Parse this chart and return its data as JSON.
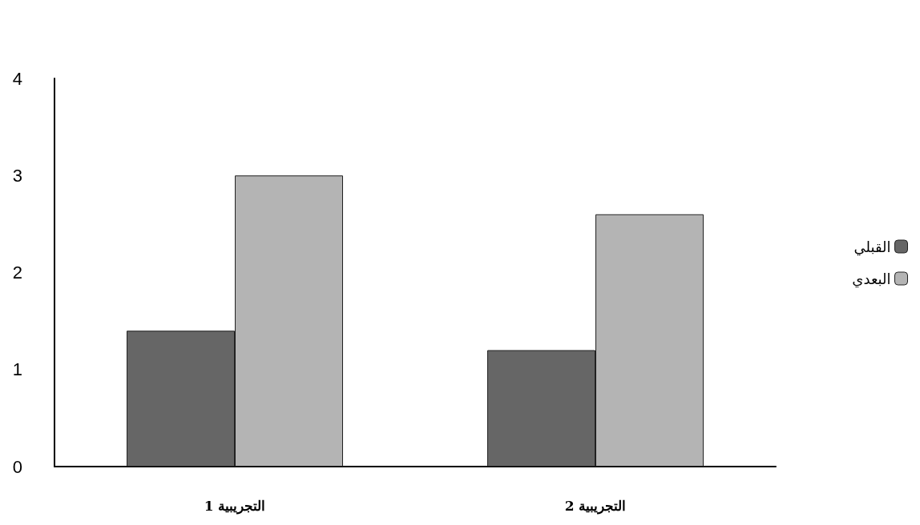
{
  "chart_data": {
    "type": "bar",
    "categories": [
      "التجريبية 1",
      "التجريبية 2"
    ],
    "series": [
      {
        "name": "القبلي",
        "color": "#666666",
        "values": [
          1.4,
          1.2
        ]
      },
      {
        "name": "البعدي",
        "color": "#b4b4b4",
        "values": [
          3.0,
          2.6
        ]
      }
    ],
    "ylim": [
      0,
      4
    ],
    "yticks": [
      0,
      1,
      2,
      3,
      4
    ],
    "grid": false,
    "legend": "right"
  }
}
